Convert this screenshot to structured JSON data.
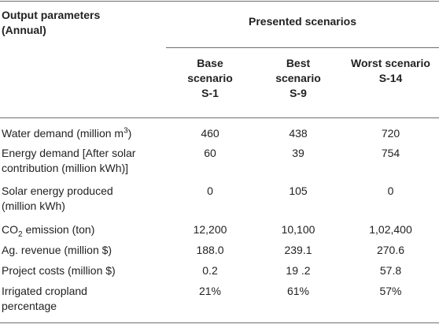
{
  "header": {
    "param_line1": "Output parameters",
    "param_line2": "(Annual)",
    "presented": "Presented scenarios"
  },
  "scenarios": [
    {
      "line1": "Base",
      "line2": "scenario",
      "line3": "S-1"
    },
    {
      "line1": "Best",
      "line2": "scenario",
      "line3": "S-9"
    },
    {
      "line1": "Worst scenario",
      "line2": "S-14",
      "line3": ""
    }
  ],
  "rows": [
    {
      "label_a": "Water demand (million m",
      "label_sup": "3",
      "label_b": ")",
      "label_line2": "",
      "values": [
        "460",
        "438",
        "720"
      ]
    },
    {
      "label_a": "Energy demand [After solar",
      "label_sup": "",
      "label_b": "",
      "label_line2": "contribution (million kWh)]",
      "values": [
        "60",
        "39",
        "754"
      ]
    },
    {
      "label_a": "Solar energy produced",
      "label_sup": "",
      "label_b": "",
      "label_line2": "(million kWh)",
      "values": [
        "0",
        "105",
        "0"
      ]
    },
    {
      "label_a": "CO",
      "label_sub": "2",
      "label_b": " emission (ton)",
      "label_line2": "",
      "values": [
        "12,200",
        "10,100",
        "1,02,400"
      ]
    },
    {
      "label_a": "Ag. revenue (million $)",
      "label_sup": "",
      "label_b": "",
      "label_line2": "",
      "values": [
        "188.0",
        "239.1",
        "270.6"
      ]
    },
    {
      "label_a": "Project costs (million $)",
      "label_sup": "",
      "label_b": "",
      "label_line2": "",
      "values": [
        "0.2",
        "19 .2",
        "57.8"
      ]
    },
    {
      "label_a": "Irrigated cropland",
      "label_sup": "",
      "label_b": "",
      "label_line2": "percentage",
      "values": [
        "21%",
        "61%",
        "57%"
      ]
    }
  ]
}
